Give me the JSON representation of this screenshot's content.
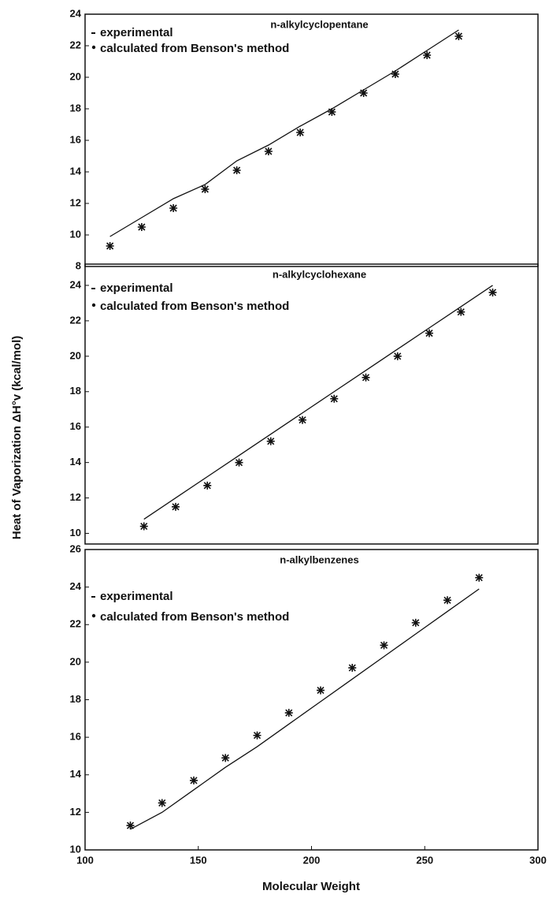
{
  "chart_data": [
    {
      "type": "line",
      "title": "n-alkylcyclopentane",
      "legend": "upper left",
      "x": [
        111,
        125,
        139,
        153,
        167,
        181,
        195,
        209,
        223,
        237,
        251,
        265
      ],
      "series": [
        {
          "name": "experimental",
          "mode": "line",
          "color": "#111111",
          "values": [
            9.9,
            11.1,
            12.3,
            13.2,
            14.7,
            15.7,
            16.9,
            18.0,
            19.2,
            20.4,
            21.7,
            23.0
          ]
        },
        {
          "name": "calculated from Benson's method",
          "mode": "markers",
          "color": "#111111",
          "values": [
            9.3,
            10.5,
            11.7,
            12.9,
            14.1,
            15.3,
            16.5,
            17.8,
            19.0,
            20.2,
            21.4,
            22.6
          ]
        }
      ],
      "xlim": [
        100,
        300
      ],
      "ylim": [
        8,
        24
      ],
      "yticks": [
        8,
        10,
        12,
        14,
        16,
        18,
        20,
        22,
        24
      ]
    },
    {
      "type": "line",
      "title": "n-alkylcyclohexane",
      "legend": "upper left",
      "ylabel": "Heat of Vaporization ΔH°v (kcal/mol)",
      "x": [
        126,
        140,
        154,
        168,
        182,
        196,
        210,
        224,
        238,
        252,
        266,
        280
      ],
      "series": [
        {
          "name": "experimental",
          "mode": "line",
          "color": "#111111",
          "values": [
            10.8,
            12.0,
            13.2,
            14.4,
            15.6,
            16.8,
            18.0,
            19.2,
            20.4,
            21.6,
            22.8,
            24.0
          ]
        },
        {
          "name": "calculated from Benson's method",
          "mode": "markers",
          "color": "#111111",
          "values": [
            10.4,
            11.5,
            12.7,
            14.0,
            15.2,
            16.4,
            17.6,
            18.8,
            20.0,
            21.3,
            22.5,
            23.6
          ]
        }
      ],
      "xlim": [
        100,
        300
      ],
      "ylim": [
        9.4,
        25.2
      ],
      "yticks": [
        10,
        12,
        14,
        16,
        18,
        20,
        22,
        24
      ]
    },
    {
      "type": "line",
      "title": "n-alkylbenzenes",
      "legend": "upper left",
      "xlabel": "Molecular Weight",
      "x": [
        120,
        134,
        148,
        162,
        176,
        190,
        204,
        218,
        232,
        246,
        260,
        274
      ],
      "series": [
        {
          "name": "experimental",
          "mode": "line",
          "color": "#111111",
          "values": [
            11.1,
            12.0,
            13.2,
            14.4,
            15.5,
            16.7,
            17.9,
            19.1,
            20.3,
            21.5,
            22.7,
            23.9
          ]
        },
        {
          "name": "calculated from Benson's method",
          "mode": "markers",
          "color": "#111111",
          "values": [
            11.3,
            12.5,
            13.7,
            14.9,
            16.1,
            17.3,
            18.5,
            19.7,
            20.9,
            22.1,
            23.3,
            24.5
          ]
        }
      ],
      "xlim": [
        100,
        300
      ],
      "ylim": [
        10,
        26
      ],
      "yticks": [
        10,
        12,
        14,
        16,
        18,
        20,
        22,
        24,
        26
      ],
      "xticks": [
        100,
        150,
        200,
        250,
        300
      ]
    }
  ]
}
